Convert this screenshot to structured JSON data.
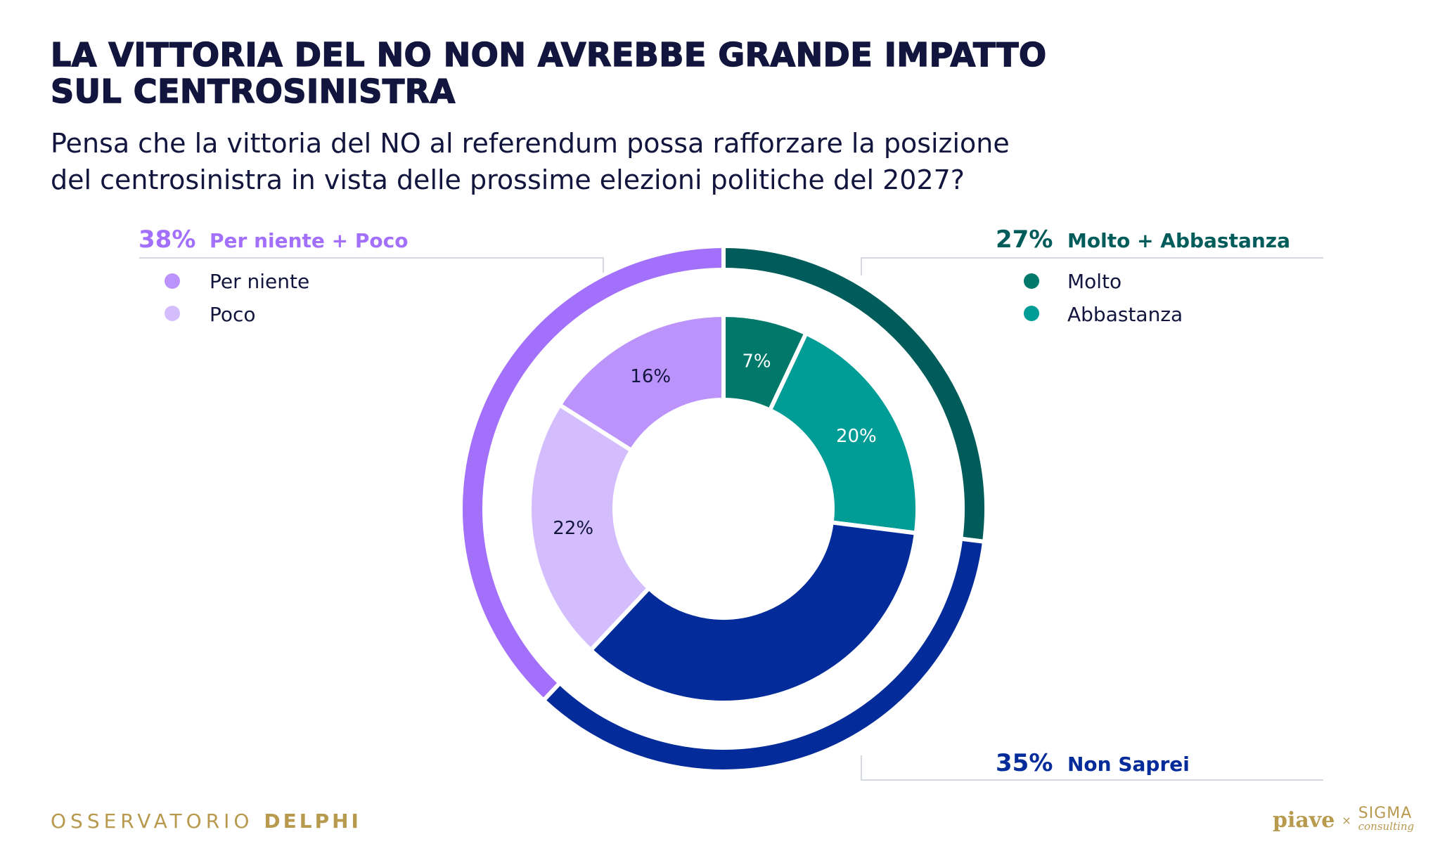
{
  "title_lines": [
    "LA VITTORIA DEL NO NON AVREBBE GRANDE IMPATTO",
    "SUL CENTROSINISTRA"
  ],
  "subtitle_lines": [
    "Pensa che la vittoria del NO al referendum possa rafforzare la posizione",
    "del centrosinistra in vista delle prossime elezioni politiche del 2027?"
  ],
  "chart_data": {
    "type": "pie",
    "variant": "nested-donut",
    "inner": [
      {
        "label": "Molto",
        "value": 7,
        "value_label": "7%",
        "color": "#00796b",
        "label_color": "#ffffff"
      },
      {
        "label": "Abbastanza",
        "value": 20,
        "value_label": "20%",
        "color": "#009c96",
        "label_color": "#ffffff"
      },
      {
        "label": "Non Saprei",
        "value": 35,
        "value_label": "",
        "color": "#032c9a",
        "label_color": "#ffffff"
      },
      {
        "label": "Poco",
        "value": 22,
        "value_label": "22%",
        "color": "#d4bdfd",
        "label_color": "#12153d"
      },
      {
        "label": "Per niente",
        "value": 16,
        "value_label": "16%",
        "color": "#bb93fb",
        "label_color": "#12153d"
      }
    ],
    "outer": [
      {
        "label": "Molto + Abbastanza",
        "value": 27,
        "value_label": "27%",
        "color": "#005c5a"
      },
      {
        "label": "Non Saprei",
        "value": 35,
        "value_label": "35%",
        "color": "#032c9a"
      },
      {
        "label": "Per niente + Poco",
        "value": 38,
        "value_label": "38%",
        "color": "#a370fc"
      }
    ],
    "legends": {
      "left": {
        "pct": "38%",
        "title": "Per niente + Poco",
        "color": "#a370fc",
        "items": [
          {
            "label": "Per niente",
            "color": "#bb93fb"
          },
          {
            "label": "Poco",
            "color": "#d4bdfd"
          }
        ]
      },
      "right": {
        "pct": "27%",
        "title": "Molto + Abbastanza",
        "color": "#005c5a",
        "items": [
          {
            "label": "Molto",
            "color": "#00796b"
          },
          {
            "label": "Abbastanza",
            "color": "#009c96"
          }
        ]
      },
      "bottom": {
        "pct": "35%",
        "title": "Non Saprei",
        "color": "#032c9a"
      }
    }
  },
  "footer": {
    "left_light": "OSSERVATORIO",
    "left_bold": "DELPHI",
    "logo_piave": "piave",
    "logo_x": "×",
    "logo_sigma": "SIGMA",
    "logo_consulting": "consulting"
  }
}
